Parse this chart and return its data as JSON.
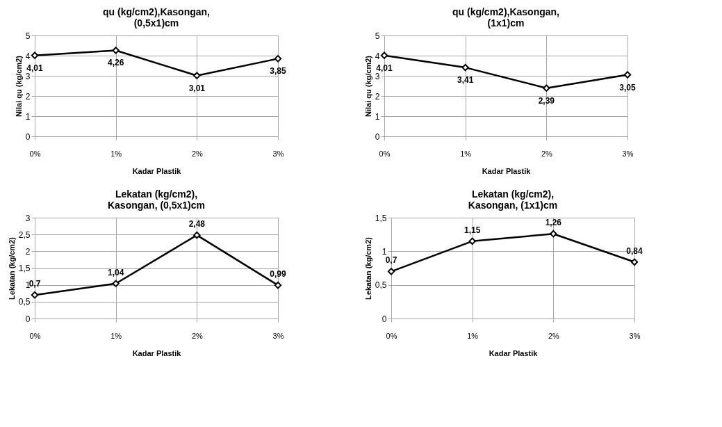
{
  "chart_data": [
    {
      "type": "line",
      "title": "qu (kg/cm2),Kasongan,\n(0,5x1)cm",
      "xlabel": "Kadar Plastik",
      "ylabel": "Nilai qu (kg/cm2)",
      "categories": [
        "0%",
        "1%",
        "2%",
        "3%"
      ],
      "series": [
        {
          "color": "#000000",
          "values": [
            4.01,
            4.26,
            3.01,
            3.85
          ],
          "value_labels": [
            "4,01",
            "4,26",
            "3,01",
            "3,85"
          ]
        }
      ],
      "ylim": [
        0,
        5
      ],
      "yticks": [
        0,
        1,
        2,
        3,
        4,
        5
      ],
      "grid": true,
      "marker": "diamond",
      "line_style": "solid"
    },
    {
      "type": "line",
      "title": "qu (kg/cm2),Kasongan,\n(1x1)cm",
      "xlabel": "Kadar Plastik",
      "ylabel": "Nilai qu (kg/cm2)",
      "categories": [
        "0%",
        "1%",
        "2%",
        "3%"
      ],
      "series": [
        {
          "color": "#000000",
          "values": [
            4.01,
            3.41,
            2.39,
            3.05
          ],
          "value_labels": [
            "4,01",
            "3,41",
            "2,39",
            "3,05"
          ]
        }
      ],
      "ylim": [
        0,
        5
      ],
      "yticks": [
        0,
        1,
        2,
        3,
        4,
        5
      ],
      "grid": true,
      "marker": "diamond",
      "line_style": "solid"
    },
    {
      "type": "line",
      "title": "Lekatan (kg/cm2),\nKasongan, (0,5x1)cm",
      "xlabel": "Kadar Plastik",
      "ylabel": "Lekatan (kg/cm2)",
      "categories": [
        "0%",
        "1%",
        "2%",
        "3%"
      ],
      "series": [
        {
          "color": "#000000",
          "values": [
            0.7,
            1.04,
            2.48,
            0.99
          ],
          "value_labels": [
            "0,7",
            "1,04",
            "2,48",
            "0,99"
          ]
        }
      ],
      "ylim": [
        0,
        3
      ],
      "yticks": [
        0,
        {
          "value": 0.5,
          "label": "0,5"
        },
        1,
        {
          "value": 1.5,
          "label": "1,5"
        },
        2,
        {
          "value": 2.5,
          "label": "2,5"
        },
        3
      ],
      "grid": true,
      "marker": "diamond",
      "line_style": "solid"
    },
    {
      "type": "line",
      "title": "Lekatan (kg/cm2),\nKasongan, (1x1)cm",
      "xlabel": "Kadar Plastik",
      "ylabel": "Lekatan (kg/cm2)",
      "categories": [
        "0%",
        "1%",
        "2%",
        "3%"
      ],
      "series": [
        {
          "color": "#000000",
          "values": [
            0.7,
            1.15,
            1.26,
            0.84
          ],
          "value_labels": [
            "0,7",
            "1,15",
            "1,26",
            "0,84"
          ]
        }
      ],
      "ylim": [
        0,
        1.5
      ],
      "yticks": [
        0,
        {
          "value": 0.5,
          "label": "0,5"
        },
        1,
        {
          "value": 1.5,
          "label": "1,5"
        }
      ],
      "grid": true,
      "marker": "diamond",
      "line_style": "solid"
    }
  ]
}
